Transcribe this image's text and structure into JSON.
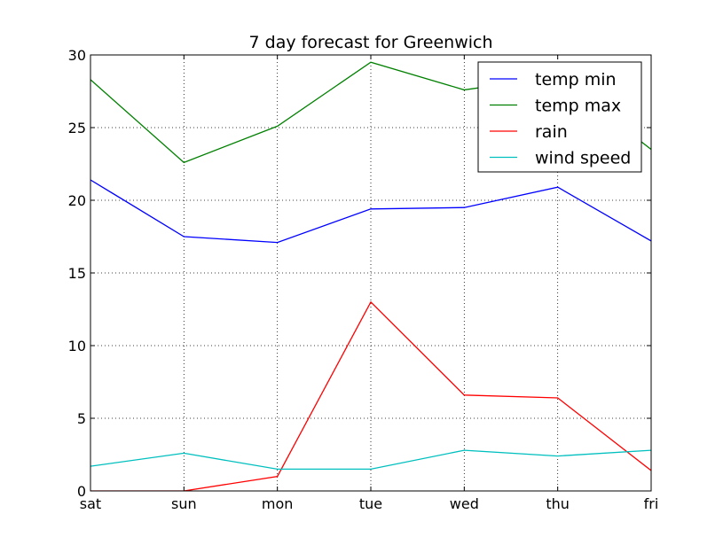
{
  "chart_data": {
    "type": "line",
    "title": "7 day forecast for Greenwich",
    "xlabel": "",
    "ylabel": "",
    "categories": [
      "sat",
      "sun",
      "mon",
      "tue",
      "wed",
      "thu",
      "fri"
    ],
    "ylim": [
      0,
      30
    ],
    "yticks": [
      "0",
      "5",
      "10",
      "15",
      "20",
      "25",
      "30"
    ],
    "grid": true,
    "legend_position": "top-right",
    "series": [
      {
        "name": "temp min",
        "color": "#0000ff",
        "values": [
          21.4,
          17.5,
          17.1,
          19.4,
          19.5,
          20.9,
          17.2
        ]
      },
      {
        "name": "temp max",
        "color": "#008000",
        "values": [
          28.3,
          22.6,
          25.1,
          29.5,
          27.6,
          28.5,
          23.5
        ]
      },
      {
        "name": "rain",
        "color": "#ff0000",
        "values": [
          0.0,
          0.0,
          1.0,
          13.0,
          6.6,
          6.4,
          1.4
        ]
      },
      {
        "name": "wind speed",
        "color": "#00bfbf",
        "values": [
          1.7,
          2.6,
          1.5,
          1.5,
          2.8,
          2.4,
          2.8
        ]
      }
    ]
  }
}
